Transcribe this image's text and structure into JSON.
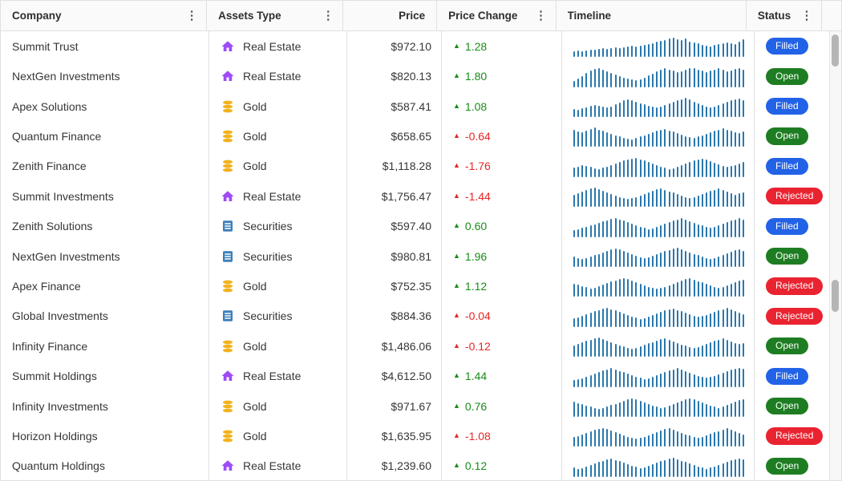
{
  "table": {
    "columns": [
      {
        "label": "Company",
        "menu": true,
        "align": "left"
      },
      {
        "label": "Assets Type",
        "menu": true,
        "align": "left"
      },
      {
        "label": "Price",
        "menu": false,
        "align": "right"
      },
      {
        "label": "Price Change",
        "menu": true,
        "align": "left"
      },
      {
        "label": "Timeline",
        "menu": false,
        "align": "left"
      },
      {
        "label": "Status",
        "menu": true,
        "align": "left"
      }
    ],
    "change_marker": "▲",
    "column_menu_icon": "⋮",
    "rows": [
      {
        "company": "Summit Trust",
        "asset_type": "Real Estate",
        "asset_icon": "house-icon",
        "price": "$972.10",
        "change": "1.28",
        "status": "Filled",
        "timeline": [
          30,
          34,
          31,
          36,
          40,
          37,
          42,
          45,
          41,
          46,
          50,
          47,
          52,
          55,
          58,
          54,
          60,
          64,
          68,
          72,
          78,
          84,
          90,
          96,
          100,
          94,
          88,
          95,
          82,
          76,
          70,
          64,
          60,
          57,
          62,
          67,
          72,
          76,
          70,
          66,
          78,
          92
        ]
      },
      {
        "company": "NextGen Investments",
        "asset_type": "Real Estate",
        "asset_icon": "house-icon",
        "price": "$820.13",
        "change": "1.80",
        "status": "Open",
        "timeline": [
          33,
          44,
          58,
          72,
          86,
          96,
          100,
          90,
          82,
          74,
          66,
          58,
          50,
          44,
          39,
          36,
          42,
          50,
          60,
          70,
          80,
          90,
          97,
          92,
          84,
          76,
          82,
          90,
          97,
          100,
          92,
          84,
          77,
          84,
          91,
          98,
          90,
          83,
          88,
          95,
          100,
          89
        ]
      },
      {
        "company": "Apex Solutions",
        "asset_type": "Gold",
        "asset_icon": "coins-icon",
        "price": "$587.41",
        "change": "1.08",
        "status": "Filled",
        "timeline": [
          42,
          39,
          44,
          50,
          57,
          63,
          59,
          53,
          49,
          56,
          66,
          76,
          86,
          93,
          89,
          81,
          73,
          66,
          59,
          53,
          49,
          56,
          63,
          71,
          79,
          86,
          93,
          99,
          91,
          81,
          71,
          63,
          56,
          51,
          56,
          63,
          71,
          79,
          86,
          91,
          96,
          87
        ]
      },
      {
        "company": "Quantum Finance",
        "asset_type": "Gold",
        "asset_icon": "coins-icon",
        "price": "$658.65",
        "change": "-0.64",
        "status": "Open",
        "timeline": [
          88,
          83,
          78,
          86,
          94,
          100,
          91,
          84,
          77,
          69,
          61,
          54,
          49,
          44,
          41,
          47,
          54,
          61,
          69,
          77,
          84,
          89,
          94,
          87,
          79,
          71,
          64,
          57,
          51,
          47,
          54,
          61,
          69,
          77,
          84,
          91,
          97,
          91,
          84,
          77,
          71,
          82
        ]
      },
      {
        "company": "Zenith Finance",
        "asset_type": "Gold",
        "asset_icon": "coins-icon",
        "price": "$1,118.28",
        "change": "-1.76",
        "status": "Filled",
        "timeline": [
          50,
          55,
          62,
          58,
          52,
          47,
          43,
          48,
          55,
          63,
          71,
          79,
          86,
          92,
          97,
          100,
          93,
          85,
          77,
          69,
          61,
          54,
          48,
          43,
          47,
          54,
          62,
          70,
          78,
          85,
          91,
          96,
          89,
          81,
          73,
          65,
          58,
          52,
          56,
          63,
          71,
          80
        ]
      },
      {
        "company": "Summit Investments",
        "asset_type": "Real Estate",
        "asset_icon": "house-icon",
        "price": "$1,756.47",
        "change": "-1.44",
        "status": "Rejected",
        "timeline": [
          65,
          72,
          80,
          88,
          95,
          100,
          92,
          84,
          76,
          68,
          60,
          53,
          47,
          42,
          46,
          53,
          61,
          69,
          77,
          85,
          92,
          98,
          90,
          82,
          74,
          66,
          59,
          52,
          47,
          52,
          59,
          67,
          75,
          83,
          90,
          96,
          88,
          80,
          72,
          65,
          70,
          78
        ]
      },
      {
        "company": "Zenith Solutions",
        "asset_type": "Securities",
        "asset_icon": "document-icon",
        "price": "$597.40",
        "change": "0.60",
        "status": "Filled",
        "timeline": [
          38,
          42,
          47,
          53,
          60,
          67,
          74,
          81,
          88,
          94,
          99,
          92,
          84,
          76,
          68,
          60,
          53,
          47,
          42,
          46,
          53,
          61,
          69,
          77,
          85,
          92,
          98,
          91,
          83,
          75,
          67,
          59,
          52,
          47,
          52,
          60,
          68,
          76,
          84,
          91,
          97,
          90
        ]
      },
      {
        "company": "NextGen Investments",
        "asset_type": "Securities",
        "asset_icon": "document-icon",
        "price": "$980.81",
        "change": "1.96",
        "status": "Open",
        "timeline": [
          55,
          48,
          42,
          46,
          53,
          61,
          69,
          77,
          85,
          92,
          98,
          91,
          83,
          75,
          67,
          59,
          52,
          47,
          51,
          58,
          66,
          74,
          82,
          89,
          95,
          100,
          93,
          85,
          77,
          69,
          61,
          54,
          48,
          43,
          48,
          55,
          63,
          71,
          79,
          86,
          92,
          85
        ]
      },
      {
        "company": "Apex Finance",
        "asset_type": "Gold",
        "asset_icon": "coins-icon",
        "price": "$752.35",
        "change": "1.12",
        "status": "Rejected",
        "timeline": [
          70,
          63,
          56,
          50,
          45,
          49,
          56,
          64,
          72,
          80,
          87,
          93,
          98,
          92,
          84,
          76,
          68,
          60,
          53,
          47,
          42,
          46,
          53,
          61,
          69,
          77,
          85,
          92,
          98,
          91,
          83,
          75,
          67,
          60,
          53,
          47,
          52,
          60,
          68,
          76,
          84,
          91
        ]
      },
      {
        "company": "Global Investments",
        "asset_type": "Securities",
        "asset_icon": "document-icon",
        "price": "$884.36",
        "change": "-0.04",
        "status": "Rejected",
        "timeline": [
          45,
          50,
          57,
          65,
          73,
          81,
          88,
          94,
          99,
          93,
          85,
          77,
          69,
          61,
          54,
          48,
          43,
          47,
          54,
          62,
          70,
          78,
          85,
          91,
          96,
          89,
          81,
          73,
          65,
          58,
          52,
          56,
          63,
          71,
          79,
          86,
          92,
          98,
          90,
          82,
          74,
          67
        ]
      },
      {
        "company": "Infinity Finance",
        "asset_type": "Gold",
        "asset_icon": "coins-icon",
        "price": "$1,486.06",
        "change": "-0.12",
        "status": "Open",
        "timeline": [
          60,
          67,
          75,
          83,
          90,
          96,
          100,
          93,
          85,
          77,
          69,
          61,
          54,
          48,
          43,
          47,
          54,
          62,
          70,
          78,
          85,
          91,
          96,
          89,
          81,
          73,
          65,
          58,
          52,
          47,
          52,
          59,
          67,
          75,
          83,
          90,
          96,
          89,
          81,
          73,
          66,
          72
        ]
      },
      {
        "company": "Summit Holdings",
        "asset_type": "Real Estate",
        "asset_icon": "house-icon",
        "price": "$4,612.50",
        "change": "1.44",
        "status": "Filled",
        "timeline": [
          35,
          40,
          46,
          53,
          61,
          69,
          77,
          85,
          92,
          98,
          92,
          84,
          76,
          68,
          60,
          53,
          47,
          42,
          46,
          53,
          61,
          69,
          77,
          85,
          92,
          98,
          91,
          83,
          75,
          67,
          59,
          52,
          47,
          51,
          58,
          66,
          74,
          82,
          89,
          95,
          100,
          93
        ]
      },
      {
        "company": "Infinity Investments",
        "asset_type": "Gold",
        "asset_icon": "coins-icon",
        "price": "$971.67",
        "change": "0.76",
        "status": "Open",
        "timeline": [
          80,
          73,
          66,
          59,
          53,
          47,
          42,
          46,
          53,
          61,
          69,
          77,
          85,
          92,
          98,
          91,
          83,
          75,
          67,
          60,
          53,
          47,
          52,
          60,
          68,
          76,
          84,
          91,
          97,
          90,
          82,
          74,
          66,
          59,
          53,
          48,
          54,
          62,
          70,
          78,
          86,
          93
        ]
      },
      {
        "company": "Horizon Holdings",
        "asset_type": "Gold",
        "asset_icon": "coins-icon",
        "price": "$1,635.95",
        "change": "-1.08",
        "status": "Rejected",
        "timeline": [
          52,
          58,
          65,
          73,
          81,
          88,
          94,
          99,
          92,
          84,
          76,
          68,
          60,
          53,
          47,
          42,
          46,
          53,
          61,
          69,
          77,
          85,
          92,
          98,
          90,
          82,
          74,
          66,
          59,
          52,
          47,
          52,
          59,
          67,
          75,
          83,
          90,
          96,
          88,
          80,
          72,
          65
        ]
      },
      {
        "company": "Quantum Holdings",
        "asset_type": "Real Estate",
        "asset_icon": "house-icon",
        "price": "$1,239.60",
        "change": "0.12",
        "status": "Open",
        "timeline": [
          48,
          43,
          47,
          54,
          62,
          70,
          78,
          85,
          91,
          96,
          89,
          81,
          73,
          65,
          58,
          52,
          47,
          51,
          58,
          66,
          74,
          82,
          89,
          95,
          100,
          93,
          85,
          77,
          69,
          61,
          54,
          48,
          43,
          48,
          55,
          63,
          71,
          79,
          86,
          92,
          97,
          90
        ]
      }
    ]
  },
  "colors": {
    "sparkline": "#2a77ad",
    "real_estate": "#9e4cf5",
    "gold": "#f2b21c",
    "securities": "#3d7fb8",
    "change_up": "#188c18",
    "change_down": "#e32726",
    "status": {
      "Filled": "#2262e6",
      "Open": "#1e7d22",
      "Rejected": "#ea2330"
    }
  }
}
